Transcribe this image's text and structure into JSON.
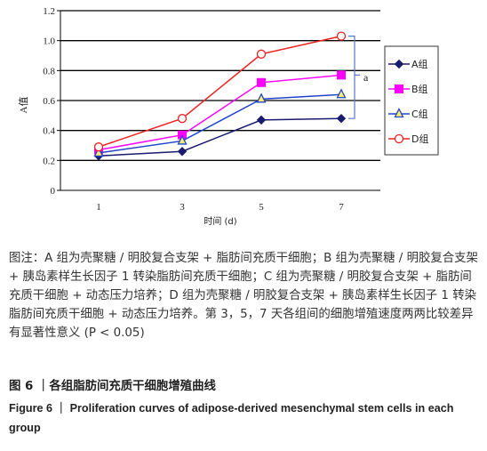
{
  "chart_data": {
    "type": "line",
    "x": [
      1,
      3,
      5,
      7
    ],
    "x_tick_labels": [
      "1",
      "3",
      "5",
      "7"
    ],
    "xlabel": "时间 (d)",
    "ylabel": "A值",
    "ylim": [
      0,
      1.2
    ],
    "y_ticks": [
      "0",
      "0.2",
      "0.4",
      "0.6",
      "0.8",
      "1.0",
      "1.2"
    ],
    "grid": true,
    "legend_position": "right",
    "annotation": "a",
    "series": [
      {
        "name": "A组",
        "values": [
          0.23,
          0.26,
          0.47,
          0.48
        ],
        "color": "#1a1a6e",
        "marker": "diamond"
      },
      {
        "name": "B组",
        "values": [
          0.27,
          0.37,
          0.72,
          0.77
        ],
        "color": "#ff00ff",
        "marker": "square"
      },
      {
        "name": "C组",
        "values": [
          0.25,
          0.33,
          0.61,
          0.64
        ],
        "color": "#2244cc",
        "marker": "triangle"
      },
      {
        "name": "D组",
        "values": [
          0.29,
          0.48,
          0.91,
          1.03
        ],
        "color": "#ee2222",
        "marker": "circle"
      }
    ]
  },
  "caption": {
    "note": "图注：A 组为壳聚糖 / 明胶复合支架 + 脂肪间充质干细胞；B 组为壳聚糖 / 明胶复合支架 + 胰岛素样生长因子 1 转染脂肪间充质干细胞；C 组为壳聚糖 / 明胶复合支架 + 脂肪间充质干细胞 + 动态压力培养；D 组为壳聚糖 / 明胶复合支架 + 胰岛素样生长因子 1 转染脂肪间充质干细胞 + 动态压力培养。第 3，5，7 天各组间的细胞增殖速度两两比较差异有显著性意义 (P < 0.05)",
    "figure_cn": "图 6 ｜各组脂肪间充质干细胞增殖曲线",
    "figure_en": "Figure 6 ｜ Proliferation curves of adipose-derived mesenchymal stem cells in each group"
  }
}
